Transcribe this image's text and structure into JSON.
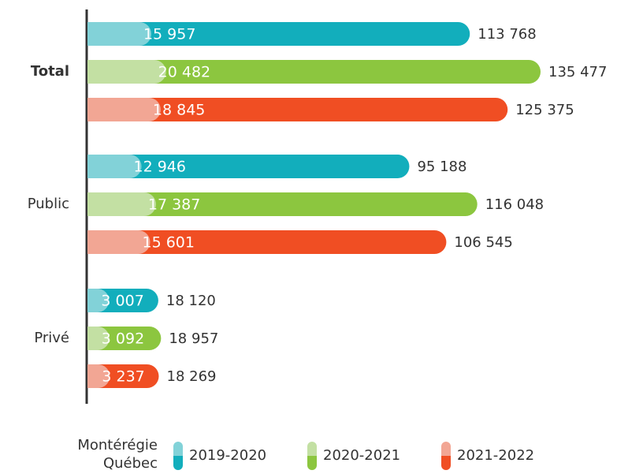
{
  "chart_data": {
    "type": "bar",
    "orientation": "horizontal",
    "categories": [
      "Total",
      "Public",
      "Privé"
    ],
    "part_labels": [
      "Montérégie",
      "Québec"
    ],
    "series": [
      {
        "name": "2019-2020",
        "color": "#12aebc",
        "light_color": "#82d2d8",
        "values": [
          113768,
          95188,
          18120
        ],
        "value_labels": [
          "113 768",
          "95 188",
          "18 120"
        ],
        "regional_values": [
          15957,
          12946,
          3007
        ],
        "regional_value_labels": [
          "15 957",
          "12 946",
          "3 007"
        ]
      },
      {
        "name": "2020-2021",
        "color": "#8cc63f",
        "light_color": "#c3e0a3",
        "values": [
          135477,
          116048,
          18957
        ],
        "value_labels": [
          "135 477",
          "116 048",
          "18 957"
        ],
        "regional_values": [
          20482,
          17387,
          3092
        ],
        "regional_value_labels": [
          "20 482",
          "17 387",
          "3 092"
        ]
      },
      {
        "name": "2021-2022",
        "color": "#f04e23",
        "light_color": "#f2a694",
        "values": [
          125375,
          106545,
          18269
        ],
        "value_labels": [
          "125 375",
          "106 545",
          "18 269"
        ],
        "regional_values": [
          18845,
          15601,
          3237
        ],
        "regional_value_labels": [
          "18 845",
          "15 601",
          "3 237"
        ]
      }
    ]
  }
}
